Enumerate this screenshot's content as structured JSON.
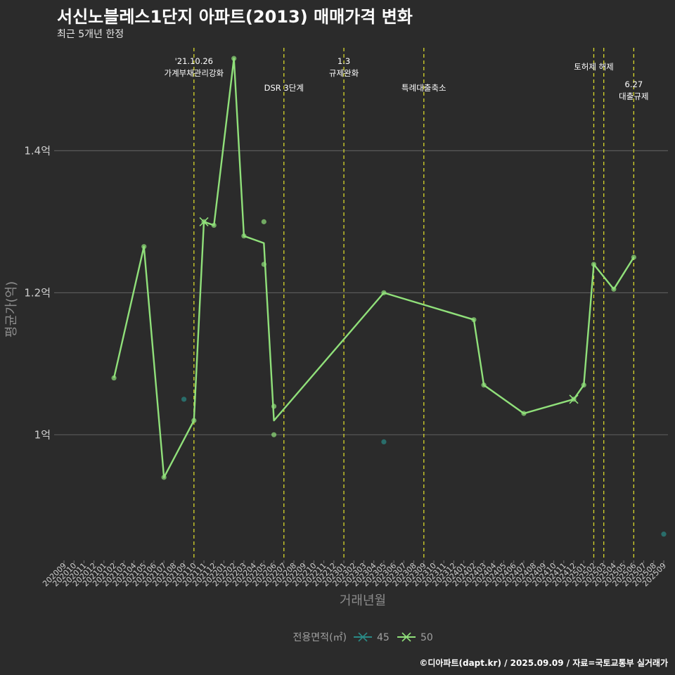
{
  "header": {
    "title": "서신노블레스1단지 아파트(2013) 매매가격 변화",
    "subtitle": "최근 5개년 한정"
  },
  "caption": "©디아파트(dapt.kr) / 2025.09.09 / 자료=국토교통부 실거래가",
  "colors": {
    "background": "#2b2b2b",
    "grid": "#5a5a5a",
    "vline": "#d7d72a",
    "series45": "#2a8a86",
    "series50": "#90e07a"
  },
  "chart_data": {
    "type": "line",
    "xlabel": "거래년월",
    "ylabel": "평균가(억)",
    "ylim": [
      0.825,
      1.545
    ],
    "yticks": [
      {
        "value": 1.0,
        "label": "1억"
      },
      {
        "value": 1.2,
        "label": "1.2억"
      },
      {
        "value": 1.4,
        "label": "1.4억"
      }
    ],
    "categories": [
      "202009",
      "202010",
      "202011",
      "202012",
      "202101",
      "202102",
      "202103",
      "202104",
      "202105",
      "202106",
      "202107",
      "202108",
      "202109",
      "202110",
      "202111",
      "202112",
      "202201",
      "202202",
      "202203",
      "202204",
      "202205",
      "202206",
      "202207",
      "202208",
      "202209",
      "202210",
      "202211",
      "202212",
      "202301",
      "202302",
      "202303",
      "202304",
      "202305",
      "202306",
      "202307",
      "202308",
      "202309",
      "202310",
      "202311",
      "202312",
      "202401",
      "202402",
      "202403",
      "202404",
      "202405",
      "202406",
      "202407",
      "202408",
      "202409",
      "202410",
      "202411",
      "202412",
      "202501",
      "202502",
      "202503",
      "202504",
      "202505",
      "202506",
      "202507",
      "202508",
      "202509"
    ],
    "events": [
      {
        "x": 13.0,
        "lines": [
          "'21.10.26",
          "가계부채관리강화"
        ],
        "row": 0
      },
      {
        "x": 22.0,
        "lines": [
          "DSR 3단계"
        ],
        "row": 2
      },
      {
        "x": 28.0,
        "lines": [
          "1.3",
          "규제완화"
        ],
        "row": 0
      },
      {
        "x": 36.0,
        "lines": [
          "특례대출축소"
        ],
        "row": 2
      },
      {
        "x": 53.0,
        "lines": [
          "토허제 해제"
        ],
        "row": 1
      },
      {
        "x": 54.0,
        "lines": [],
        "row": 1
      },
      {
        "x": 57.0,
        "lines": [
          "6.27",
          "대출규제"
        ],
        "row": 3
      }
    ],
    "legend": {
      "title": "전용면적(㎡)",
      "items": [
        {
          "label": "45",
          "color": "#2a8a86"
        },
        {
          "label": "50",
          "color": "#90e07a"
        }
      ]
    },
    "series": [
      {
        "name": "50",
        "color": "#90e07a",
        "line": [
          {
            "x": 5,
            "y": 1.08
          },
          {
            "x": 8,
            "y": 1.265
          },
          {
            "x": 10,
            "y": 0.94
          },
          {
            "x": 13,
            "y": 1.02
          },
          {
            "x": 14,
            "y": 1.3
          },
          {
            "x": 15,
            "y": 1.295
          },
          {
            "x": 17,
            "y": 1.53
          },
          {
            "x": 18,
            "y": 1.28
          },
          {
            "x": 20,
            "y": 1.27
          },
          {
            "x": 21,
            "y": 1.02
          },
          {
            "x": 32,
            "y": 1.2
          },
          {
            "x": 41,
            "y": 1.162
          },
          {
            "x": 42,
            "y": 1.07
          },
          {
            "x": 46,
            "y": 1.03
          },
          {
            "x": 51,
            "y": 1.05
          },
          {
            "x": 52,
            "y": 1.07
          },
          {
            "x": 53,
            "y": 1.24
          },
          {
            "x": 55,
            "y": 1.205
          },
          {
            "x": 57,
            "y": 1.25
          }
        ],
        "points": [
          {
            "x": 5,
            "y": 1.08
          },
          {
            "x": 8,
            "y": 1.265
          },
          {
            "x": 10,
            "y": 0.94
          },
          {
            "x": 13,
            "y": 1.02
          },
          {
            "x": 14,
            "y": 1.3
          },
          {
            "x": 15,
            "y": 1.295
          },
          {
            "x": 17,
            "y": 1.53
          },
          {
            "x": 18,
            "y": 1.28
          },
          {
            "x": 20,
            "y": 1.3
          },
          {
            "x": 20,
            "y": 1.24
          },
          {
            "x": 21,
            "y": 1.04
          },
          {
            "x": 21,
            "y": 1.0
          },
          {
            "x": 32,
            "y": 1.2
          },
          {
            "x": 41,
            "y": 1.162
          },
          {
            "x": 42,
            "y": 1.07
          },
          {
            "x": 46,
            "y": 1.03
          },
          {
            "x": 51,
            "y": 1.05
          },
          {
            "x": 52,
            "y": 1.07
          },
          {
            "x": 53,
            "y": 1.24
          },
          {
            "x": 55,
            "y": 1.205
          },
          {
            "x": 57,
            "y": 1.25
          }
        ]
      },
      {
        "name": "45",
        "color": "#2a8a86",
        "line": [],
        "points": [
          {
            "x": 12,
            "y": 1.05
          },
          {
            "x": 32,
            "y": 0.99
          },
          {
            "x": 60,
            "y": 0.86
          }
        ]
      }
    ]
  }
}
